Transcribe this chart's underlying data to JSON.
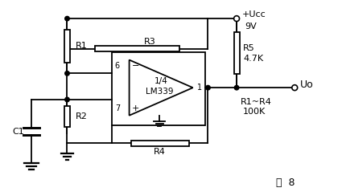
{
  "line_color": "#000000",
  "fig_label": "图  8",
  "vcc_label": "+Ucc",
  "vcc_voltage": "9V",
  "r1_label": "R1",
  "r2_label": "R2",
  "r3_label": "R3",
  "r4_label": "R4",
  "r5_label": "R5",
  "r5_value": "4.7K",
  "c1_label": "C1",
  "ic_label1": "1/4",
  "ic_label2": "LM339",
  "pin6": "6",
  "pin7": "7",
  "pin1": "1",
  "feedback_label": "R1~R4",
  "feedback_value": "100K",
  "uo_label": "Uo"
}
